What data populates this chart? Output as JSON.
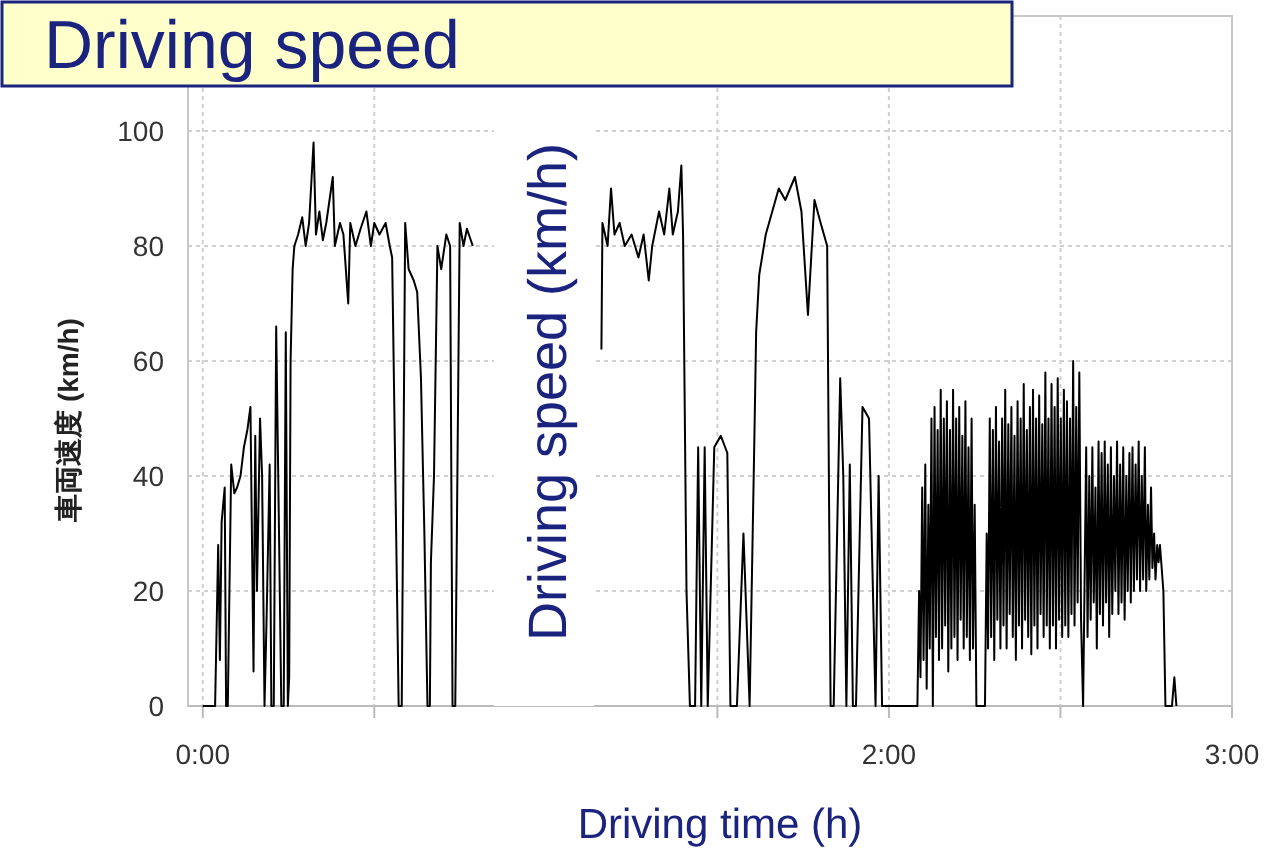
{
  "chart_data": {
    "type": "line",
    "title": "Driving speed",
    "xlabel": "Driving time (h)",
    "ylabel": "車両速度 (km/h)",
    "annotations": [
      "Driving speed (km/h)"
    ],
    "xlim": [
      -0.043,
      3
    ],
    "ylim": [
      0,
      120
    ],
    "xticks": [
      {
        "value": 0,
        "label": "0:00"
      },
      {
        "value": 0.5,
        "label": null
      },
      {
        "value": 1.5,
        "label": null
      },
      {
        "value": 2,
        "label": "2:00"
      },
      {
        "value": 2.5,
        "label": null
      },
      {
        "value": 3,
        "label": "3:00"
      }
    ],
    "yticks": [
      0,
      20,
      40,
      60,
      80,
      100
    ],
    "grid": true,
    "series": [
      {
        "color": "#000000",
        "x": [
          0,
          0.036,
          0.045,
          0.05,
          0.055,
          0.064,
          0.068,
          0.073,
          0.083,
          0.092,
          0.1,
          0.11,
          0.12,
          0.13,
          0.139,
          0.148,
          0.153,
          0.158,
          0.167,
          0.173,
          0.18,
          0.186,
          0.195,
          0.2,
          0.207,
          0.214,
          0.22,
          0.229,
          0.236,
          0.242,
          0.248,
          0.252,
          0.256,
          0.262,
          0.267,
          0.278,
          0.29,
          0.3,
          0.31,
          0.323,
          0.33,
          0.34,
          0.35,
          0.36,
          0.379,
          0.385,
          0.4,
          0.41,
          0.424,
          0.43,
          0.445,
          0.46,
          0.477,
          0.49,
          0.5,
          0.515,
          0.533,
          0.545,
          0.552,
          0.571,
          0.58,
          0.59,
          0.6,
          0.615,
          0.625,
          0.636,
          0.646,
          0.655,
          0.662,
          0.665,
          0.674,
          0.684,
          0.695,
          0.71,
          0.721,
          0.728,
          0.736,
          0.749,
          0.76,
          0.77,
          0.787,
          0.97,
          1.162,
          1.165,
          1.18,
          1.19,
          1.2,
          1.215,
          1.23,
          1.25,
          1.27,
          1.285,
          1.3,
          1.31,
          1.33,
          1.345,
          1.36,
          1.37,
          1.385,
          1.395,
          1.4,
          1.41,
          1.42,
          1.435,
          1.444,
          1.453,
          1.463,
          1.472,
          1.491,
          1.51,
          1.529,
          1.538,
          1.557,
          1.576,
          1.594,
          1.608,
          1.613,
          1.622,
          1.641,
          1.66,
          1.679,
          1.698,
          1.726,
          1.745,
          1.764,
          1.783,
          1.801,
          1.82,
          1.83,
          1.839,
          1.858,
          1.867,
          1.876,
          1.886,
          1.895,
          1.904,
          1.923,
          1.942,
          1.961,
          1.97,
          1.98,
          1.989,
          1.998,
          2.083,
          2.088,
          2.092,
          2.097,
          2.101,
          2.106,
          2.11,
          2.115,
          2.119,
          2.124,
          2.128,
          2.133,
          2.137,
          2.142,
          2.146,
          2.151,
          2.155,
          2.16,
          2.164,
          2.169,
          2.173,
          2.178,
          2.182,
          2.187,
          2.191,
          2.196,
          2.2,
          2.205,
          2.209,
          2.214,
          2.218,
          2.223,
          2.227,
          2.232,
          2.236,
          2.241,
          2.245,
          2.25,
          2.255,
          2.28,
          2.285,
          2.289,
          2.294,
          2.298,
          2.303,
          2.307,
          2.312,
          2.316,
          2.321,
          2.325,
          2.33,
          2.334,
          2.339,
          2.343,
          2.348,
          2.352,
          2.357,
          2.361,
          2.366,
          2.37,
          2.375,
          2.379,
          2.384,
          2.388,
          2.393,
          2.397,
          2.402,
          2.406,
          2.411,
          2.415,
          2.42,
          2.424,
          2.429,
          2.433,
          2.438,
          2.442,
          2.447,
          2.451,
          2.456,
          2.46,
          2.465,
          2.469,
          2.474,
          2.478,
          2.483,
          2.487,
          2.492,
          2.496,
          2.501,
          2.505,
          2.51,
          2.514,
          2.519,
          2.523,
          2.528,
          2.532,
          2.537,
          2.541,
          2.546,
          2.55,
          2.555,
          2.56,
          2.566,
          2.575,
          2.579,
          2.584,
          2.588,
          2.593,
          2.597,
          2.602,
          2.606,
          2.611,
          2.615,
          2.62,
          2.624,
          2.629,
          2.633,
          2.638,
          2.642,
          2.647,
          2.651,
          2.656,
          2.66,
          2.665,
          2.669,
          2.674,
          2.678,
          2.683,
          2.687,
          2.692,
          2.696,
          2.701,
          2.705,
          2.71,
          2.714,
          2.719,
          2.723,
          2.728,
          2.732,
          2.737,
          2.741,
          2.746,
          2.75,
          2.755,
          2.759,
          2.764,
          2.768,
          2.773,
          2.777,
          2.782,
          2.786,
          2.79,
          2.8,
          2.806,
          2.825,
          2.832,
          2.838
        ],
        "values": [
          0,
          0,
          28,
          8,
          32,
          38,
          0,
          0,
          42,
          37,
          38,
          40,
          45,
          48,
          52,
          6,
          47,
          20,
          50,
          40,
          0,
          15,
          42,
          0,
          0,
          66,
          40,
          0,
          0,
          65,
          0,
          5,
          60,
          76,
          80,
          82,
          85,
          80,
          84,
          98,
          82,
          86,
          81,
          84,
          92,
          80,
          84,
          82,
          70,
          84,
          80,
          83,
          86,
          80,
          84,
          82,
          84,
          80,
          78,
          0,
          0,
          84,
          76,
          74,
          72,
          57,
          30,
          0,
          0,
          25,
          40,
          80,
          76,
          82,
          80,
          0,
          0,
          84,
          80,
          83,
          80,
          null,
          62,
          84,
          80,
          90,
          82,
          84,
          80,
          82,
          78,
          82,
          74,
          80,
          86,
          82,
          90,
          82,
          86,
          94,
          82,
          20,
          0,
          0,
          45,
          0,
          45,
          0,
          45,
          47,
          44,
          0,
          0,
          30,
          0,
          47,
          65,
          75,
          82,
          86,
          90,
          88,
          92,
          86,
          68,
          88,
          84,
          80,
          0,
          0,
          57,
          40,
          0,
          42,
          0,
          0,
          52,
          50,
          0,
          40,
          0,
          0,
          0,
          0,
          20,
          5,
          38,
          8,
          42,
          3,
          35,
          10,
          50,
          0,
          52,
          12,
          48,
          8,
          55,
          10,
          50,
          14,
          53,
          6,
          48,
          10,
          55,
          12,
          50,
          8,
          52,
          15,
          47,
          10,
          53,
          12,
          45,
          8,
          50,
          10,
          35,
          0,
          0,
          30,
          10,
          50,
          12,
          48,
          8,
          52,
          15,
          46,
          10,
          50,
          14,
          55,
          10,
          49,
          16,
          52,
          12,
          47,
          8,
          53,
          14,
          50,
          10,
          56,
          15,
          48,
          12,
          52,
          9,
          55,
          14,
          50,
          10,
          54,
          16,
          49,
          12,
          58,
          14,
          50,
          10,
          56,
          14,
          52,
          10,
          57,
          15,
          50,
          12,
          55,
          14,
          53,
          12,
          50,
          16,
          60,
          14,
          52,
          18,
          58,
          15,
          0,
          45,
          12,
          40,
          15,
          45,
          18,
          38,
          10,
          46,
          16,
          44,
          14,
          46,
          18,
          42,
          12,
          45,
          16,
          40,
          20,
          46,
          16,
          42,
          18,
          45,
          15,
          40,
          20,
          44,
          18,
          45,
          20,
          42,
          22,
          46,
          20,
          40,
          22,
          45,
          20,
          35,
          22,
          38,
          24,
          30,
          22,
          28,
          25,
          28,
          20,
          0,
          0,
          5,
          0
        ]
      }
    ]
  }
}
